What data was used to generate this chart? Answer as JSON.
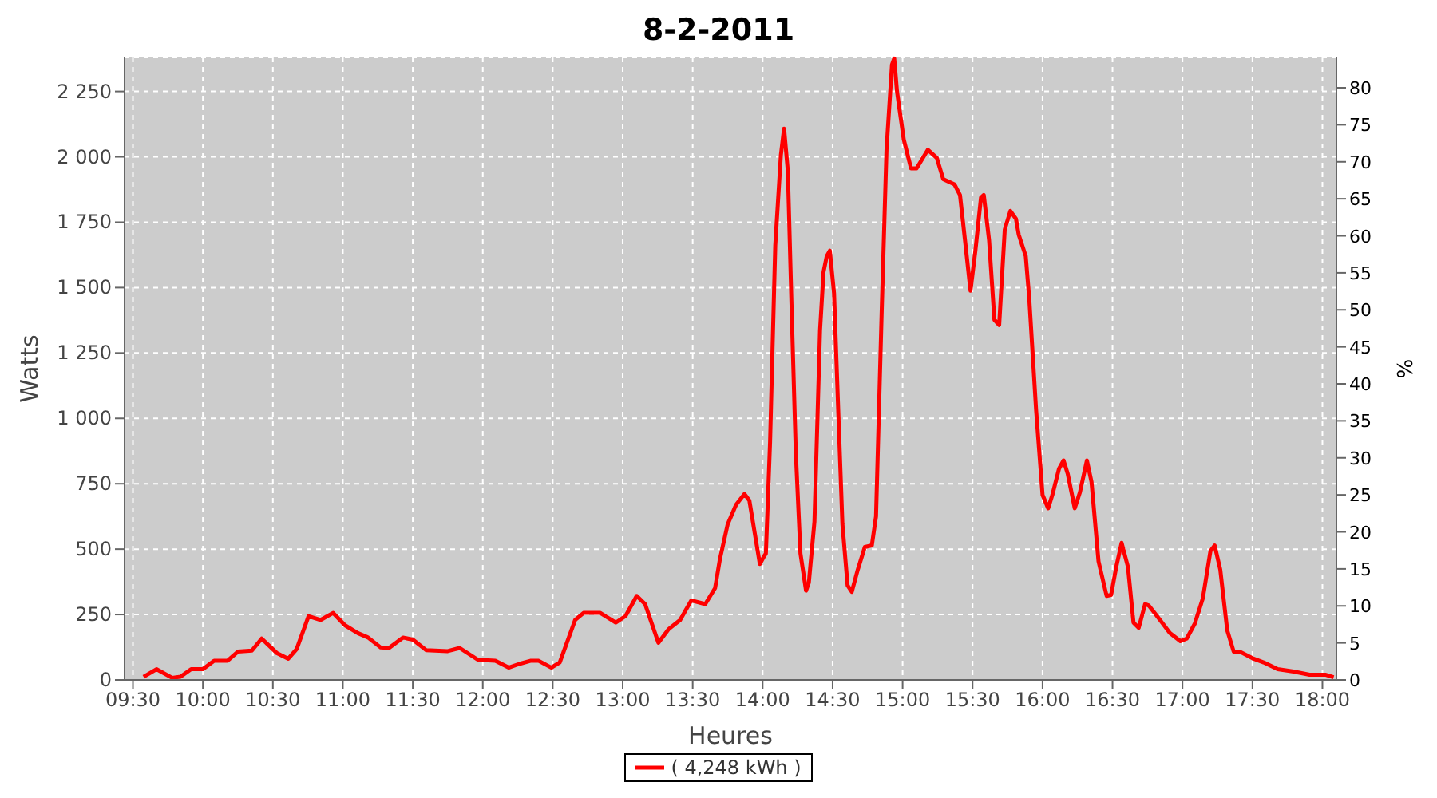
{
  "chart_data": {
    "type": "line",
    "title": "8-2-2011",
    "xlabel": "Heures",
    "ylabel": "Watts",
    "y2label": "%",
    "xlim": [
      9.44,
      18.1
    ],
    "xticks": [
      {
        "value": 9.5,
        "label": "09:30"
      },
      {
        "value": 10,
        "label": "10:00"
      },
      {
        "value": 10.5,
        "label": "10:30"
      },
      {
        "value": 11,
        "label": "11:00"
      },
      {
        "value": 11.5,
        "label": "11:30"
      },
      {
        "value": 12,
        "label": "12:00"
      },
      {
        "value": 12.5,
        "label": "12:30"
      },
      {
        "value": 13,
        "label": "13:00"
      },
      {
        "value": 13.5,
        "label": "13:30"
      },
      {
        "value": 14,
        "label": "14:00"
      },
      {
        "value": 14.5,
        "label": "14:30"
      },
      {
        "value": 15,
        "label": "15:00"
      },
      {
        "value": 15.5,
        "label": "15:30"
      },
      {
        "value": 16,
        "label": "16:00"
      },
      {
        "value": 16.5,
        "label": "16:30"
      },
      {
        "value": 17,
        "label": "17:00"
      },
      {
        "value": 17.5,
        "label": "17:30"
      },
      {
        "value": 18,
        "label": "18:00"
      }
    ],
    "ylim": [
      0,
      2380
    ],
    "yticks": [
      0,
      250,
      500,
      750,
      {
        "value": 1000,
        "label": "1 000"
      },
      {
        "value": 1250,
        "label": "1 250"
      },
      {
        "value": 1500,
        "label": "1 500"
      },
      {
        "value": 1750,
        "label": "1 750"
      },
      {
        "value": 2000,
        "label": "2 000"
      },
      {
        "value": 2250,
        "label": "2 250"
      }
    ],
    "y2lim": [
      0,
      84.1
    ],
    "y2ticks": [
      0,
      5,
      10,
      15,
      20,
      25,
      30,
      35,
      40,
      45,
      50,
      55,
      60,
      65,
      70,
      75,
      80
    ],
    "grid": true,
    "legend": "bottom",
    "marker": "none",
    "line_style": "solid",
    "x": [
      9.576,
      9.668,
      9.78,
      9.84,
      9.916,
      10.0,
      10.08,
      10.175,
      10.25,
      10.35,
      10.42,
      10.53,
      10.61,
      10.67,
      10.755,
      10.84,
      10.93,
      11.015,
      11.107,
      11.18,
      11.27,
      11.33,
      11.43,
      11.5,
      11.595,
      11.75,
      11.835,
      11.965,
      12.09,
      12.185,
      12.26,
      12.34,
      12.4,
      12.49,
      12.55,
      12.66,
      12.72,
      12.84,
      12.95,
      13.02,
      13.1,
      13.16,
      13.255,
      13.33,
      13.41,
      13.49,
      13.59,
      13.66,
      13.695,
      13.75,
      13.81,
      13.87,
      13.905,
      13.98,
      14.01,
      14.023,
      14.053,
      14.09,
      14.13,
      14.153,
      14.18,
      14.206,
      14.237,
      14.27,
      14.31,
      14.33,
      14.37,
      14.41,
      14.435,
      14.458,
      14.48,
      14.51,
      14.54,
      14.57,
      14.607,
      14.637,
      14.68,
      14.73,
      14.78,
      14.81,
      14.85,
      14.885,
      14.924,
      14.94,
      14.96,
      15.008,
      15.06,
      15.1,
      15.18,
      15.244,
      15.29,
      15.37,
      15.41,
      15.45,
      15.485,
      15.52,
      15.56,
      15.58,
      15.618,
      15.656,
      15.69,
      15.73,
      15.77,
      15.81,
      15.83,
      15.88,
      15.905,
      15.954,
      16.0,
      16.04,
      16.07,
      16.118,
      16.15,
      16.18,
      16.23,
      16.267,
      16.317,
      16.35,
      16.4,
      16.458,
      16.49,
      16.527,
      16.565,
      16.61,
      16.65,
      16.687,
      16.733,
      16.76,
      16.84,
      16.91,
      16.985,
      17.03,
      17.088,
      17.145,
      17.2,
      17.23,
      17.27,
      17.32,
      17.366,
      17.41,
      17.508,
      17.58,
      17.68,
      17.794,
      17.908,
      18.02,
      18.08
    ],
    "series": [
      {
        "name": "( 4,248 kWh )",
        "color": "#ff0000",
        "values": [
          12,
          41,
          8,
          12,
          41,
          41,
          73,
          73,
          108,
          112,
          158,
          102,
          81,
          118,
          244,
          229,
          256,
          209,
          179,
          162,
          124,
          122,
          162,
          154,
          114,
          110,
          122,
          77,
          73,
          47,
          61,
          73,
          73,
          47,
          67,
          229,
          256,
          256,
          219,
          244,
          321,
          290,
          142,
          195,
          229,
          304,
          290,
          351,
          463,
          595,
          670,
          711,
          686,
          443,
          473,
          483,
          910,
          1661,
          2006,
          2108,
          1945,
          1438,
          869,
          483,
          341,
          372,
          605,
          1336,
          1560,
          1620,
          1641,
          1479,
          1032,
          595,
          361,
          337,
          422,
          508,
          514,
          625,
          1397,
          2027,
          2352,
          2376,
          2250,
          2067,
          1956,
          1956,
          2027,
          1996,
          1915,
          1895,
          1854,
          1661,
          1488,
          1641,
          1844,
          1854,
          1681,
          1377,
          1357,
          1722,
          1793,
          1763,
          1702,
          1620,
          1458,
          1032,
          707,
          656,
          707,
          808,
          839,
          788,
          656,
          717,
          839,
          757,
          453,
          321,
          325,
          433,
          524,
          433,
          219,
          199,
          290,
          284,
          229,
          179,
          148,
          158,
          215,
          311,
          493,
          514,
          422,
          189,
          108,
          108,
          81,
          67,
          41,
          32,
          20,
          20,
          10
        ]
      }
    ]
  }
}
